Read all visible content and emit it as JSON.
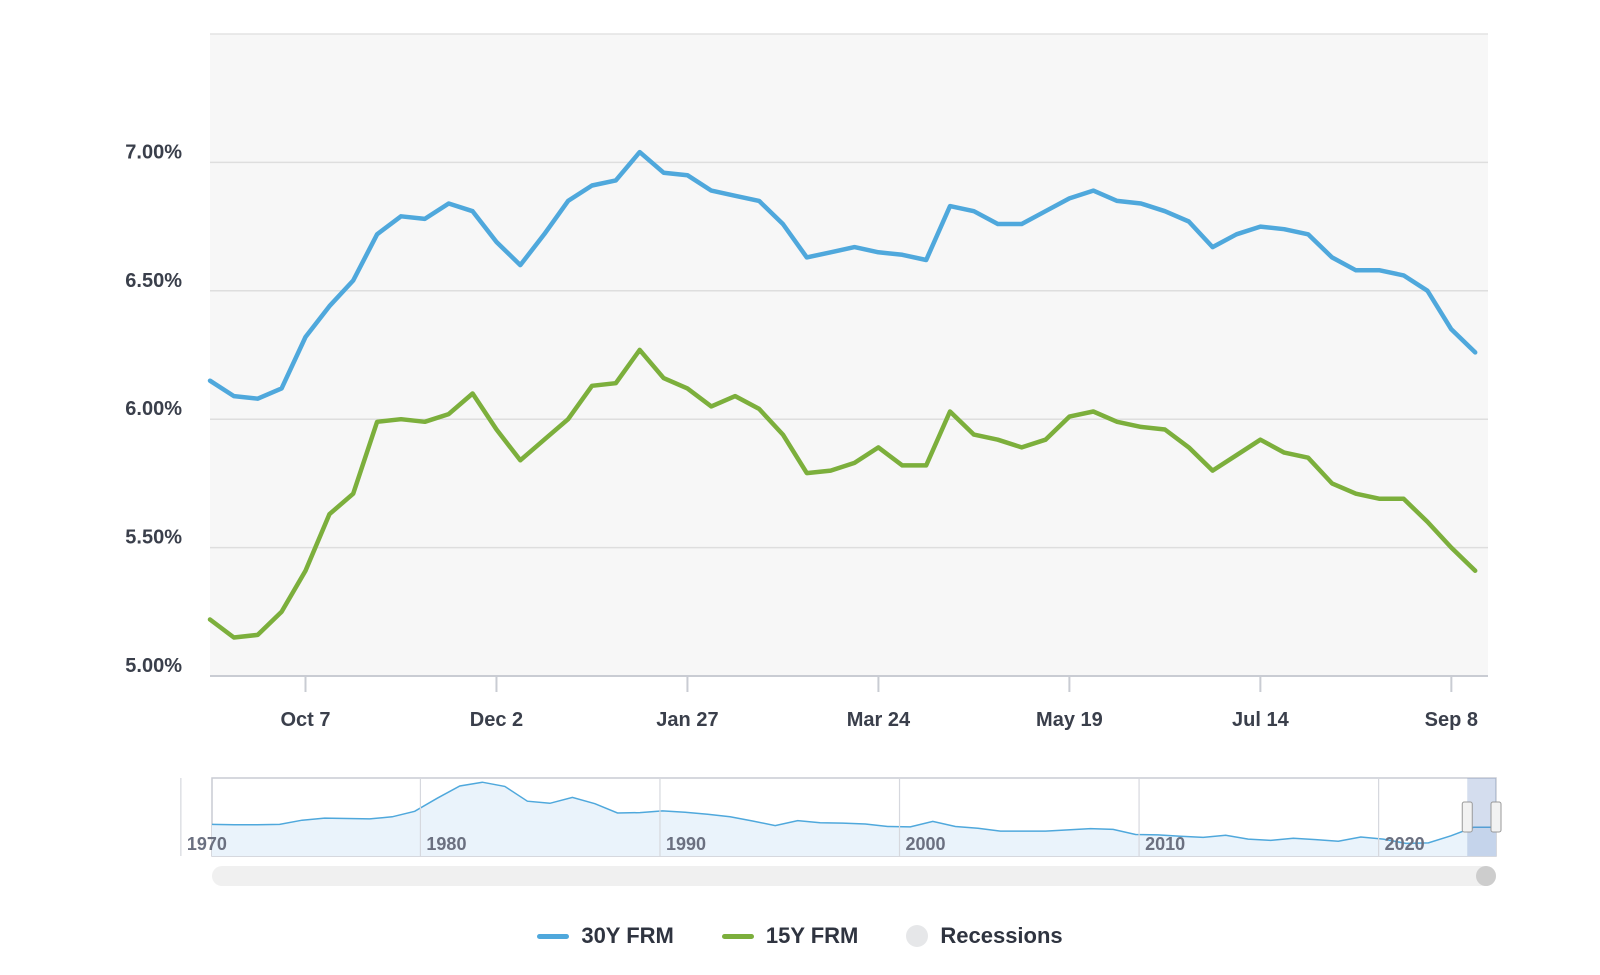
{
  "chart_data": {
    "type": "line",
    "ylim": [
      5.0,
      7.5
    ],
    "y_ticks": [
      "5.00%",
      "5.50%",
      "6.00%",
      "6.50%",
      "7.00%"
    ],
    "y_tick_values": [
      5.0,
      5.5,
      6.0,
      6.5,
      7.0
    ],
    "x_tick_labels": [
      "Oct 7",
      "Dec 2",
      "Jan 27",
      "Mar 24",
      "May 19",
      "Jul 14",
      "Sep 8"
    ],
    "x_tick_indices": [
      4,
      12,
      20,
      28,
      36,
      44,
      52
    ],
    "grid": true,
    "legend_position": "bottom-center",
    "series": [
      {
        "name": "30Y FRM",
        "color": "#4fa8dc",
        "values": [
          6.15,
          6.09,
          6.08,
          6.12,
          6.32,
          6.44,
          6.54,
          6.72,
          6.79,
          6.78,
          6.84,
          6.81,
          6.69,
          6.6,
          6.72,
          6.85,
          6.91,
          6.93,
          7.04,
          6.96,
          6.95,
          6.89,
          6.87,
          6.85,
          6.76,
          6.63,
          6.65,
          6.67,
          6.65,
          6.64,
          6.62,
          6.83,
          6.81,
          6.76,
          6.76,
          6.81,
          6.86,
          6.89,
          6.85,
          6.84,
          6.81,
          6.77,
          6.67,
          6.72,
          6.75,
          6.74,
          6.72,
          6.63,
          6.58,
          6.58,
          6.56,
          6.5,
          6.35,
          6.26
        ]
      },
      {
        "name": "15Y FRM",
        "color": "#7caf3c",
        "values": [
          5.22,
          5.15,
          5.16,
          5.25,
          5.41,
          5.63,
          5.71,
          5.99,
          6.0,
          5.99,
          6.02,
          6.1,
          5.96,
          5.84,
          5.92,
          6.0,
          6.13,
          6.14,
          6.27,
          6.16,
          6.12,
          6.05,
          6.09,
          6.04,
          5.94,
          5.79,
          5.8,
          5.83,
          5.89,
          5.82,
          5.82,
          6.03,
          5.94,
          5.92,
          5.89,
          5.92,
          6.01,
          6.03,
          5.99,
          5.97,
          5.96,
          5.89,
          5.8,
          5.86,
          5.92,
          5.87,
          5.85,
          5.75,
          5.71,
          5.69,
          5.69,
          5.6,
          5.5,
          5.41
        ]
      }
    ],
    "recessions_label": "Recessions",
    "recessions_color": "#e6e7e9"
  },
  "navigator": {
    "decade_labels": [
      "1970",
      "1980",
      "1990",
      "2000",
      "2010",
      "2020"
    ],
    "range_start_year": 1971.3,
    "range_end_year": 2024.9,
    "selected_start_year": 2023.7,
    "selected_end_year": 2024.9,
    "series_values": [
      7.5,
      7.4,
      7.4,
      7.5,
      8.5,
      9.0,
      8.9,
      8.8,
      9.3,
      10.6,
      13.7,
      16.6,
      17.5,
      16.5,
      13.0,
      12.5,
      13.9,
      12.4,
      10.2,
      10.3,
      10.7,
      10.4,
      9.9,
      9.3,
      8.3,
      7.2,
      8.4,
      7.9,
      7.8,
      7.6,
      7.0,
      6.9,
      8.2,
      7.0,
      6.6,
      5.9,
      5.9,
      5.9,
      6.2,
      6.5,
      6.3,
      5.1,
      5.0,
      4.7,
      4.4,
      4.9,
      4.0,
      3.7,
      4.2,
      3.9,
      3.5,
      4.5,
      4.0,
      3.0,
      3.1,
      4.8,
      6.8,
      6.8
    ]
  },
  "legend": {
    "items": [
      {
        "label": "30Y FRM",
        "color": "#4fa8dc",
        "kind": "line"
      },
      {
        "label": "15Y FRM",
        "color": "#7caf3c",
        "kind": "line"
      },
      {
        "label": "Recessions",
        "color": "#e6e7e9",
        "kind": "dot"
      }
    ]
  }
}
